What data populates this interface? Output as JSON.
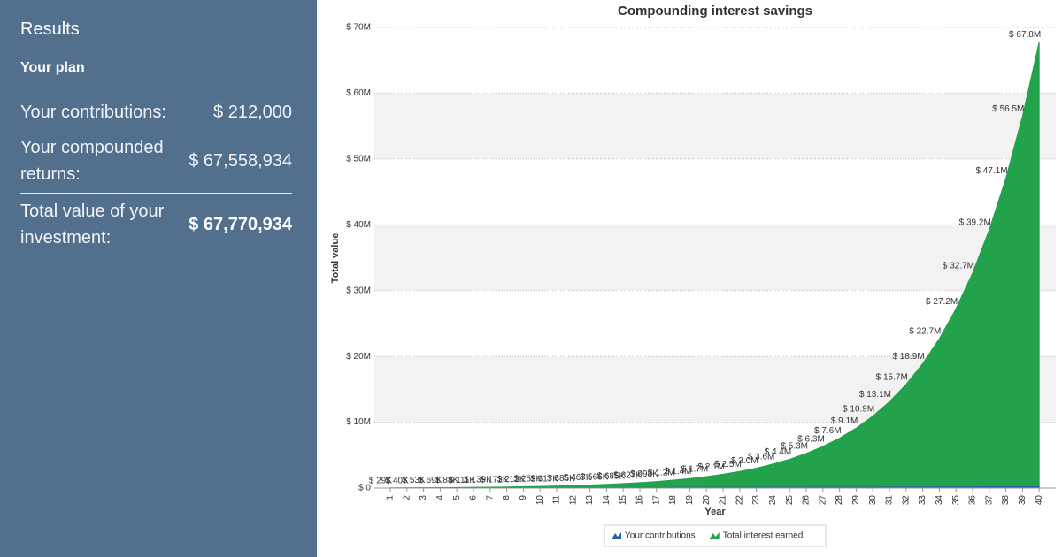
{
  "sidebar": {
    "heading": "Results",
    "subheading": "Your plan",
    "rows": [
      {
        "label": "Your contributions:",
        "value": "$ 212,000"
      },
      {
        "label": "Your compounded returns:",
        "value": "$ 67,558,934"
      },
      {
        "label": "Total value of your investment:",
        "value": "$ 67,770,934"
      }
    ]
  },
  "chart_data": {
    "type": "area",
    "title": "Compounding interest savings",
    "x_label": "Year",
    "y_label": "Total value",
    "categories": [
      "1",
      "2",
      "3",
      "4",
      "5",
      "6",
      "7",
      "8",
      "9",
      "10",
      "11",
      "12",
      "13",
      "14",
      "15",
      "16",
      "17",
      "18",
      "19",
      "20",
      "21",
      "22",
      "23",
      "24",
      "25",
      "26",
      "27",
      "28",
      "29",
      "30",
      "31",
      "32",
      "33",
      "34",
      "35",
      "36",
      "37",
      "38",
      "39",
      "40"
    ],
    "series": [
      {
        "name": "Your contributions",
        "color": "#2a62a8",
        "values": [
          5300,
          10600,
          15900,
          21200,
          26500,
          31800,
          37100,
          42400,
          47700,
          53000,
          58300,
          63600,
          68900,
          74200,
          79500,
          84800,
          90100,
          95400,
          100700,
          106000,
          111300,
          116600,
          121900,
          127200,
          132500,
          137800,
          143100,
          148400,
          153700,
          159000,
          164300,
          169600,
          174900,
          180200,
          185500,
          190800,
          196100,
          201400,
          206700,
          212000
        ]
      },
      {
        "name": "Total interest earned",
        "color": "#22a24a",
        "values": [
          28900,
          40000,
          53300,
          69200,
          88400,
          111400,
          138900,
          171900,
          211700,
          259300,
          316500,
          385100,
          467400,
          566200,
          684800,
          827100,
          997800,
          1202600,
          1448400,
          1743400,
          2097400,
          2522100,
          3031800,
          3643500,
          4377500,
          5258300,
          6315300,
          7583600,
          9105700,
          10932100,
          13123800,
          15740000,
          18910000,
          22697000,
          27242000,
          32696000,
          39240000,
          47093000,
          56517000,
          67770934
        ],
        "value_labels": [
          "$ 29K",
          "$ 40K",
          "$ 53K",
          "$ 69K",
          "$ 88K",
          "$ 111K",
          "$ 139K",
          "$ 172K",
          "$ 212K",
          "$ 259K",
          "$ 317K",
          "$ 385K",
          "$ 467K",
          "$ 566K",
          "$ 685K",
          "$ 827K",
          "$ 998K",
          "$ 1.2M",
          "$ 1.4M",
          "$ 1.7M",
          "$ 2.1M",
          "$ 2.5M",
          "$ 3.0M",
          "$ 3.6M",
          "$ 4.4M",
          "$ 5.3M",
          "$ 6.3M",
          "$ 7.6M",
          "$ 9.1M",
          "$ 10.9M",
          "$ 13.1M",
          "$ 15.7M",
          "$ 18.9M",
          "$ 22.7M",
          "$ 27.2M",
          "$ 32.7M",
          "$ 39.2M",
          "$ 47.1M",
          "$ 56.5M",
          "$ 67.8M"
        ]
      }
    ],
    "ylim": [
      0,
      70000000
    ],
    "yticks": [
      {
        "value": 0,
        "label": "$ 0"
      },
      {
        "value": 10000000,
        "label": "$ 10M"
      },
      {
        "value": 20000000,
        "label": "$ 20M"
      },
      {
        "value": 30000000,
        "label": "$ 30M"
      },
      {
        "value": 40000000,
        "label": "$ 40M"
      },
      {
        "value": 50000000,
        "label": "$ 50M"
      },
      {
        "value": 60000000,
        "label": "$ 60M"
      },
      {
        "value": 70000000,
        "label": "$ 70M"
      }
    ],
    "grid": true,
    "legend": "bottom"
  }
}
